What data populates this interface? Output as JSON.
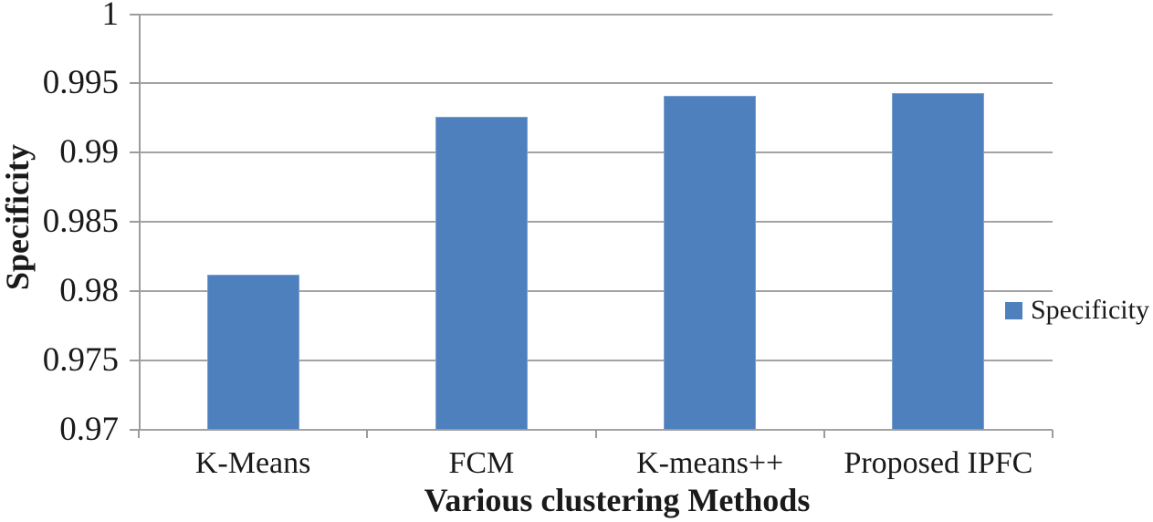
{
  "chart_data": {
    "type": "bar",
    "title": "",
    "categories": [
      "K-Means",
      "FCM",
      "K-means++",
      "Proposed IPFC"
    ],
    "series": [
      {
        "name": "Specificity",
        "values": [
          0.9812,
          0.9926,
          0.9941,
          0.9943
        ]
      }
    ],
    "xlabel": "Various clustering Methods",
    "ylabel": "Specificity",
    "ylim": [
      0.97,
      1.0
    ],
    "yticks": [
      0.97,
      0.975,
      0.98,
      0.985,
      0.99,
      0.995,
      1
    ],
    "ytick_labels": [
      "0.97",
      "0.975",
      "0.98",
      "0.985",
      "0.99",
      "0.995",
      "1"
    ],
    "grid": true,
    "legend": {
      "position": "right",
      "entries": [
        "Specificity"
      ]
    },
    "colors": {
      "bar": "#4e80bd",
      "bar_border": "#7ba0ce",
      "gridline": "#a3a3a3",
      "axis": "#9c9c9c",
      "text": "#1a1a1a",
      "background": "#ffffff"
    }
  }
}
